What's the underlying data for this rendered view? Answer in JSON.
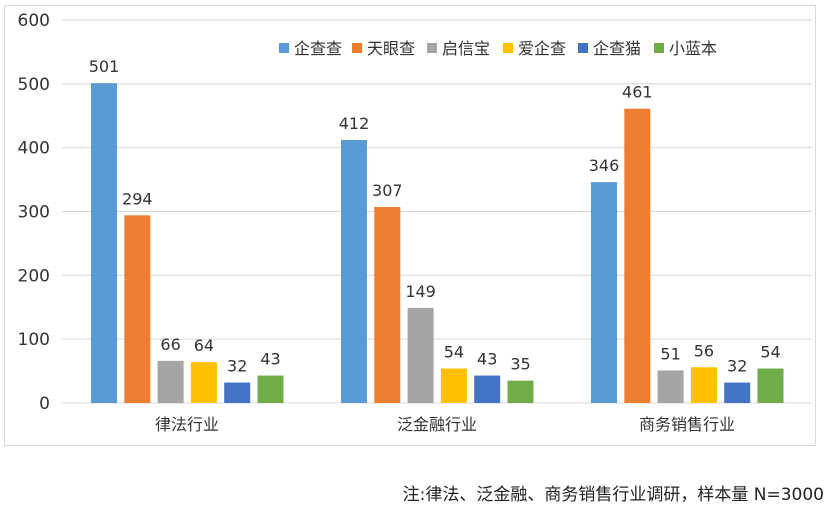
{
  "chart_data": {
    "type": "bar",
    "title": "",
    "xlabel": "",
    "ylabel": "",
    "ylim": [
      0,
      600
    ],
    "yticks": [
      0,
      100,
      200,
      300,
      400,
      500,
      600
    ],
    "grid": true,
    "legend_position": "top-right",
    "categories": [
      "律法行业",
      "泛金融行业",
      "商务销售行业"
    ],
    "series": [
      {
        "name": "企查查",
        "color": "#5b9bd5",
        "values": [
          501,
          412,
          346
        ]
      },
      {
        "name": "天眼查",
        "color": "#ed7d31",
        "values": [
          294,
          307,
          461
        ]
      },
      {
        "name": "启信宝",
        "color": "#a5a5a5",
        "values": [
          66,
          149,
          51
        ]
      },
      {
        "name": "爱企查",
        "color": "#ffc000",
        "values": [
          64,
          54,
          56
        ]
      },
      {
        "name": "企查猫",
        "color": "#4472c4",
        "values": [
          32,
          43,
          32
        ]
      },
      {
        "name": "小蓝本",
        "color": "#70ad47",
        "values": [
          43,
          35,
          54
        ]
      }
    ]
  },
  "note": "注:律法、泛金融、商务销售行业调研，样本量 N=3000"
}
